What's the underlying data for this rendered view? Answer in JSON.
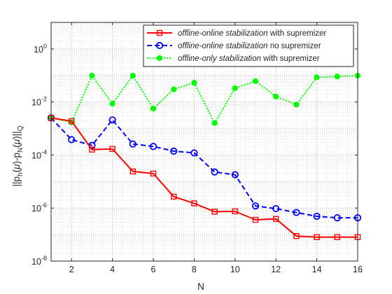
{
  "chart_data": {
    "type": "line",
    "title": "",
    "xlabel": "N",
    "ylabel": "||p_h(μ)-p_N(μ)||_Q",
    "ylabel_parts": {
      "pre": "||p",
      "sub1": "h",
      "mid1": "(",
      "mu1": "μ",
      "mid2": ")-p",
      "sub2": "N",
      "mid3": "(",
      "mu2": "μ",
      "mid4": ")||",
      "sub3": "Q"
    },
    "xlim": [
      1,
      16
    ],
    "ylim": [
      1e-08,
      10
    ],
    "yscale": "log",
    "grid": "major and minor",
    "legend_position": "top-right",
    "x_ticks": [
      2,
      4,
      6,
      8,
      10,
      12,
      14,
      16
    ],
    "x_tick_labels": [
      "2",
      "4",
      "6",
      "8",
      "10",
      "12",
      "14",
      "16"
    ],
    "y_ticks": [
      {
        "value": 1e-08,
        "base": "10",
        "exp": "-8"
      },
      {
        "value": 1e-06,
        "base": "10",
        "exp": "-6"
      },
      {
        "value": 0.0001,
        "base": "10",
        "exp": "-4"
      },
      {
        "value": 0.01,
        "base": "10",
        "exp": "-2"
      },
      {
        "value": 1,
        "base": "10",
        "exp": "0"
      }
    ],
    "x": [
      1,
      2,
      3,
      4,
      5,
      6,
      7,
      8,
      9,
      10,
      11,
      12,
      13,
      14,
      15,
      16
    ],
    "series": [
      {
        "name_italic": "offline-online stabilization",
        "name_rest": " with supremizer",
        "color": "#ff0000",
        "line_style": "solid",
        "marker": "square",
        "values": [
          0.0025,
          0.0019,
          0.00016,
          0.00017,
          2.4e-05,
          2e-05,
          2.7e-06,
          1.5e-06,
          7.3e-07,
          7.5e-07,
          3.6e-07,
          3.9e-07,
          8.8e-08,
          8e-08,
          8e-08,
          8e-08
        ]
      },
      {
        "name_italic": "offline-online stabilization",
        "name_rest": " no supremizer",
        "color": "#0000ff",
        "line_style": "dashed",
        "marker": "circle",
        "values": [
          0.0025,
          0.00038,
          0.00023,
          0.0021,
          0.00026,
          0.00021,
          0.00014,
          0.00012,
          2.3e-05,
          1.8e-05,
          1.2e-06,
          9.5e-07,
          6.8e-07,
          4.9e-07,
          4.3e-07,
          4.3e-07
        ]
      },
      {
        "name_italic": "offline-only stabilization",
        "name_rest": " with supremizer",
        "color": "#00ff00",
        "line_style": "dotted",
        "marker": "dot",
        "values": [
          0.0025,
          0.0017,
          0.098,
          0.0086,
          0.098,
          0.0056,
          0.03,
          0.053,
          0.0016,
          0.033,
          0.061,
          0.016,
          0.0079,
          0.085,
          0.091,
          0.098
        ]
      }
    ]
  }
}
